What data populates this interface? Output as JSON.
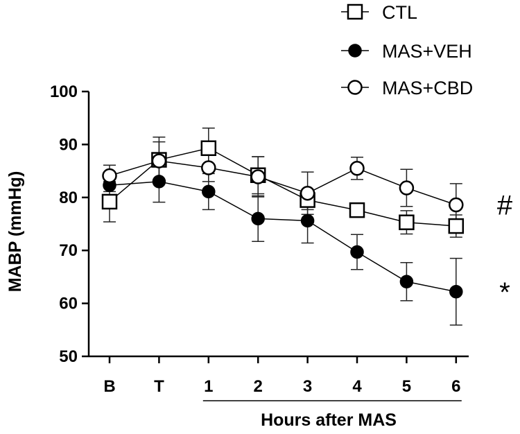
{
  "chart_data": {
    "type": "line",
    "title": "",
    "xlabel": "Hours after MAS",
    "ylabel": "MABP (mmHg)",
    "ylim": [
      50,
      100
    ],
    "yticks": [
      50,
      60,
      70,
      80,
      90,
      100
    ],
    "categories": [
      "B",
      "T",
      "1",
      "2",
      "3",
      "4",
      "5",
      "6"
    ],
    "xlabel_bracket_span": [
      "1",
      "6"
    ],
    "legend_position": "top-right",
    "series": [
      {
        "name": "CTL",
        "marker": "open-square",
        "values": [
          79.2,
          87.1,
          89.3,
          84.2,
          79.5,
          77.6,
          75.3,
          74.6
        ],
        "errors": [
          3.8,
          4.3,
          3.8,
          3.5,
          1.8,
          1.2,
          2.2,
          2.1
        ]
      },
      {
        "name": "MAS+VEH",
        "marker": "filled-circle",
        "values": [
          82.3,
          83.0,
          81.1,
          76.0,
          75.6,
          69.7,
          64.1,
          62.2
        ],
        "errors": [
          1.2,
          3.9,
          3.4,
          4.3,
          4.2,
          3.3,
          3.6,
          6.3
        ]
      },
      {
        "name": "MAS+CBD",
        "marker": "open-circle",
        "values": [
          84.1,
          86.9,
          85.6,
          83.9,
          80.8,
          85.5,
          81.8,
          78.6
        ],
        "errors": [
          2.0,
          3.6,
          2.6,
          3.8,
          4.0,
          2.1,
          3.5,
          4.0
        ]
      }
    ],
    "annotations": [
      {
        "text": "#",
        "series": "MAS+CBD"
      },
      {
        "text": "*",
        "series": "MAS+VEH"
      }
    ]
  }
}
